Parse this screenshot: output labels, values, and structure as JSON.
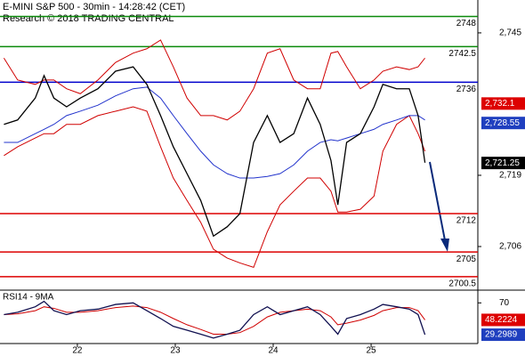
{
  "chart_data": [
    {
      "type": "line",
      "title": "E-MINI S&P 500 - 30min - 14:28:42 (CET)",
      "subtitle": "Research © 2018 TRADING CENTRAL",
      "x": [
        21.25,
        21.39,
        21.57,
        21.66,
        21.76,
        21.89,
        22.03,
        22.21,
        22.39,
        22.57,
        22.71,
        22.85,
        22.98,
        23.12,
        23.26,
        23.39,
        23.53,
        23.66,
        23.8,
        23.94,
        24.07,
        24.21,
        24.35,
        24.48,
        24.59,
        24.66,
        24.75,
        24.89,
        25.03,
        25.12,
        25.26,
        25.39,
        25.48,
        25.55
      ],
      "xlim": [
        21.21,
        26.09
      ],
      "xticks": [
        22,
        23,
        24,
        25
      ],
      "ylim": [
        2698.2,
        2751.0
      ],
      "yticks": [
        {
          "value": 2745,
          "label": "2,745"
        },
        {
          "value": 2719,
          "label": "2,719"
        },
        {
          "value": 2706,
          "label": "2,706"
        }
      ],
      "series": [
        {
          "color": "#d00000",
          "values": [
            2740.4,
            2736.4,
            2735.6,
            2736.4,
            2736.4,
            2734.8,
            2733.9,
            2736.4,
            2739.6,
            2741.3,
            2742.1,
            2743.7,
            2738.8,
            2733.1,
            2729.9,
            2729.9,
            2729.1,
            2730.7,
            2734.8,
            2741.3,
            2742.1,
            2736.4,
            2734.8,
            2734.8,
            2741.3,
            2741.6,
            2738.8,
            2734.8,
            2736.4,
            2738.0,
            2738.8,
            2738.3,
            2738.8,
            2740.4
          ]
        },
        {
          "color": "#d00000",
          "values": [
            2722.6,
            2724.2,
            2725.8,
            2726.6,
            2726.6,
            2728.3,
            2728.3,
            2729.9,
            2730.7,
            2731.5,
            2730.7,
            2724.2,
            2718.5,
            2714.4,
            2710.4,
            2705.5,
            2703.9,
            2703.0,
            2702.2,
            2708.7,
            2713.6,
            2716.1,
            2718.5,
            2718.5,
            2716.1,
            2712.3,
            2712.3,
            2712.8,
            2715.2,
            2723.4,
            2728.3,
            2729.9,
            2726.6,
            2723.4
          ]
        },
        {
          "color": "#2233cc",
          "values": [
            2725.0,
            2725.0,
            2726.6,
            2727.4,
            2728.3,
            2729.9,
            2730.7,
            2731.8,
            2733.5,
            2734.8,
            2735.1,
            2733.1,
            2729.9,
            2726.6,
            2723.4,
            2720.9,
            2719.3,
            2718.5,
            2718.5,
            2718.8,
            2719.3,
            2720.9,
            2723.4,
            2725.0,
            2725.5,
            2725.3,
            2725.8,
            2726.6,
            2727.4,
            2728.3,
            2729.1,
            2729.9,
            2729.9,
            2729.1
          ]
        },
        {
          "color": "#000000",
          "values": [
            2728.3,
            2729.1,
            2733.1,
            2737.2,
            2733.1,
            2731.5,
            2733.1,
            2734.8,
            2738.0,
            2738.8,
            2735.6,
            2729.9,
            2724.2,
            2719.3,
            2714.4,
            2707.9,
            2709.6,
            2712.0,
            2725.0,
            2729.9,
            2725.0,
            2726.6,
            2733.1,
            2728.3,
            2721.7,
            2713.6,
            2725.0,
            2726.6,
            2731.5,
            2735.6,
            2734.8,
            2734.8,
            2729.9,
            2721.3
          ]
        }
      ],
      "levels": [
        {
          "value": 2748,
          "color": "#0a8a0a"
        },
        {
          "value": 2742.5,
          "color": "#0a8a0a"
        },
        {
          "value": 2736,
          "color": "#0000cc"
        },
        {
          "value": 2712,
          "color": "#dd0000"
        },
        {
          "value": 2705,
          "color": "#dd0000"
        },
        {
          "value": 2700.5,
          "color": "#dd0000"
        }
      ],
      "badges": [
        {
          "value": 2732.1,
          "label": "2,732.1",
          "color": "#dd0000"
        },
        {
          "value": 2728.55,
          "label": "2,728.55",
          "color": "#1f3fbf"
        },
        {
          "value": 2721.25,
          "label": "2,721.25",
          "color": "#000000"
        }
      ]
    },
    {
      "type": "line",
      "title": "RSI14 - 9MA",
      "ylim": [
        18,
        84
      ],
      "yticks": [
        70
      ],
      "series": [
        {
          "color": "#d00000",
          "values": [
            55,
            56,
            60,
            65,
            63,
            58,
            58,
            60,
            64,
            66,
            64,
            58,
            50,
            42,
            36,
            30,
            30,
            32,
            40,
            52,
            58,
            60,
            62,
            60,
            52,
            42,
            44,
            48,
            54,
            60,
            64,
            64,
            60,
            48.2
          ]
        },
        {
          "color": "#101050",
          "values": [
            55,
            58,
            65,
            72,
            60,
            55,
            60,
            62,
            68,
            70,
            60,
            50,
            40,
            35,
            30,
            25,
            30,
            35,
            55,
            65,
            55,
            60,
            65,
            55,
            40,
            30,
            50,
            55,
            62,
            68,
            65,
            62,
            55,
            29.3
          ]
        }
      ],
      "badges": [
        {
          "value": 48.2224,
          "color": "#dd0000"
        },
        {
          "value": 29.2989,
          "color": "#1f3fbf"
        }
      ]
    }
  ]
}
